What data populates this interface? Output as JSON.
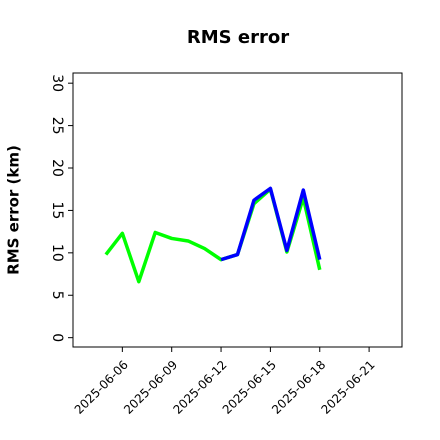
{
  "chart_data": {
    "type": "line",
    "title": "RMS error",
    "ylabel": "RMS error (km)",
    "x": [
      "2025-06-05",
      "2025-06-06",
      "2025-06-07",
      "2025-06-08",
      "2025-06-09",
      "2025-06-10",
      "2025-06-11",
      "2025-06-12",
      "2025-06-13",
      "2025-06-14",
      "2025-06-15",
      "2025-06-16",
      "2025-06-17",
      "2025-06-18"
    ],
    "series": [
      {
        "name": "green",
        "color": "#00ff00",
        "values": [
          9.8,
          12.3,
          6.6,
          12.4,
          11.7,
          11.4,
          10.5,
          9.2,
          9.8,
          15.8,
          17.5,
          10.1,
          16.5,
          8.0
        ]
      },
      {
        "name": "blue",
        "color": "#0000ff",
        "values": [
          null,
          null,
          null,
          null,
          null,
          null,
          null,
          9.2,
          9.8,
          16.2,
          17.6,
          10.3,
          17.4,
          9.2
        ]
      }
    ],
    "xlim": [
      "2025-06-03",
      "2025-06-23"
    ],
    "xticks": [
      "2025-06-06",
      "2025-06-09",
      "2025-06-12",
      "2025-06-15",
      "2025-06-18",
      "2025-06-21"
    ],
    "xtick_label_colors": [
      "#000000",
      "#000000",
      "#228b22",
      "#000000",
      "#000000",
      "#000000"
    ],
    "ylim": [
      -1.1,
      31.2
    ],
    "yticks": [
      0,
      5,
      10,
      15,
      20,
      25,
      30
    ]
  }
}
